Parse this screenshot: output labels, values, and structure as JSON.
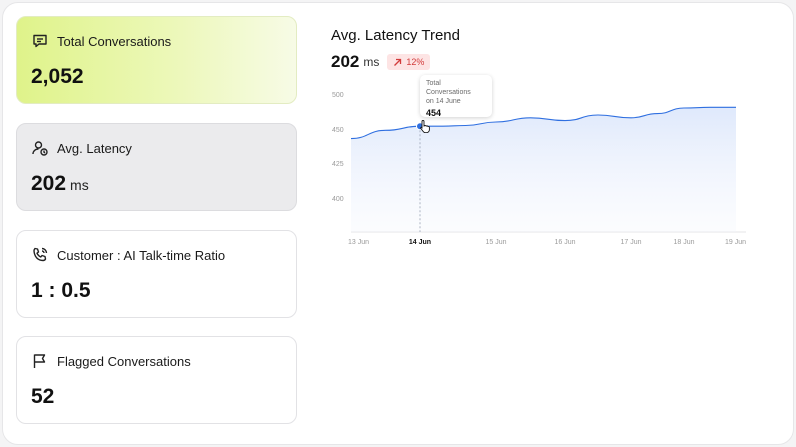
{
  "cards": [
    {
      "label": "Total Conversations",
      "value": "2,052",
      "unit": "",
      "icon": "chat-icon"
    },
    {
      "label": "Avg. Latency",
      "value": "202",
      "unit": "ms",
      "icon": "user-clock-icon"
    },
    {
      "label": "Customer : AI Talk-time Ratio",
      "value": "1 : 0.5",
      "unit": "",
      "icon": "phone-icon"
    },
    {
      "label": "Flagged Conversations",
      "value": "52",
      "unit": "",
      "icon": "flag-icon"
    }
  ],
  "trend": {
    "title": "Avg. Latency Trend",
    "value": "202",
    "unit": "ms",
    "change": "12%"
  },
  "tooltip": {
    "title_line1": "Total Conversations",
    "title_line2": "on 14 June",
    "value": "454"
  },
  "chart_data": {
    "type": "area",
    "x": [
      "13 Jun",
      "14 Jun",
      "15 Jun",
      "16 Jun",
      "17 Jun",
      "18 Jun",
      "19 Jun"
    ],
    "y_ticks": [
      "500",
      "450",
      "425",
      "400"
    ],
    "ylim": [
      375,
      500
    ],
    "highlighted": "14 Jun",
    "series": [
      {
        "values": [
          {
            "x": 0,
            "y": 443
          },
          {
            "x": 0.5,
            "y": 449
          },
          {
            "x": 1,
            "y": 454
          },
          {
            "x": 1.3,
            "y": 454
          },
          {
            "x": 1.6,
            "y": 455
          },
          {
            "x": 2,
            "y": 460
          },
          {
            "x": 2.5,
            "y": 466
          },
          {
            "x": 3,
            "y": 462
          },
          {
            "x": 3.5,
            "y": 470
          },
          {
            "x": 4,
            "y": 466
          },
          {
            "x": 4.5,
            "y": 472
          },
          {
            "x": 5,
            "y": 480
          },
          {
            "x": 5.5,
            "y": 481
          },
          {
            "x": 6,
            "y": 481
          }
        ]
      }
    ],
    "color": "#2f6fe0"
  }
}
